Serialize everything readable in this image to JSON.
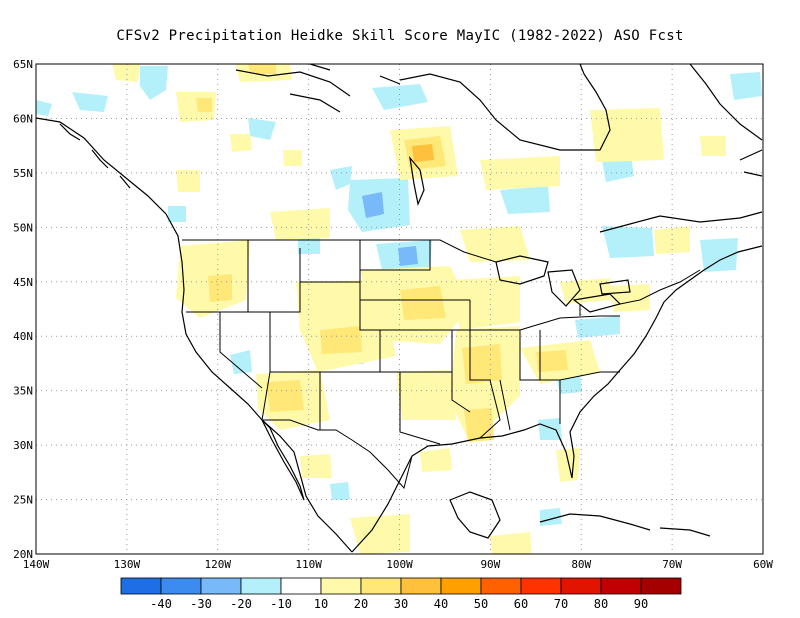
{
  "title": "CFSv2  Precipitation Heidke Skill Score MayIC (1982-2022) ASO Fcst",
  "map": {
    "lon_range": [
      -140,
      -60
    ],
    "lat_range": [
      20,
      65
    ],
    "lat_labels": [
      "65N",
      "60N",
      "55N",
      "50N",
      "45N",
      "40N",
      "35N",
      "30N",
      "25N",
      "20N"
    ],
    "lat_values": [
      65,
      60,
      55,
      50,
      45,
      40,
      35,
      30,
      25,
      20
    ],
    "lon_labels": [
      "140W",
      "130W",
      "120W",
      "110W",
      "100W",
      "90W",
      "80W",
      "70W",
      "60W"
    ],
    "lon_values": [
      -140,
      -130,
      -120,
      -110,
      -100,
      -90,
      -80,
      -70,
      -60
    ],
    "grid": "dotted"
  },
  "colorbar": {
    "colors": [
      "#1e6ee6",
      "#3c8cf0",
      "#78b9fa",
      "#b4f0fa",
      "#ffffff",
      "#fffaaa",
      "#ffe878",
      "#ffc03c",
      "#ffa000",
      "#ff6000",
      "#ff3200",
      "#e11400",
      "#c00000",
      "#a50000"
    ],
    "labels": [
      "-40",
      "-30",
      "-20",
      "-10",
      "10",
      "20",
      "30",
      "40",
      "50",
      "60",
      "70",
      "80",
      "90"
    ]
  }
}
